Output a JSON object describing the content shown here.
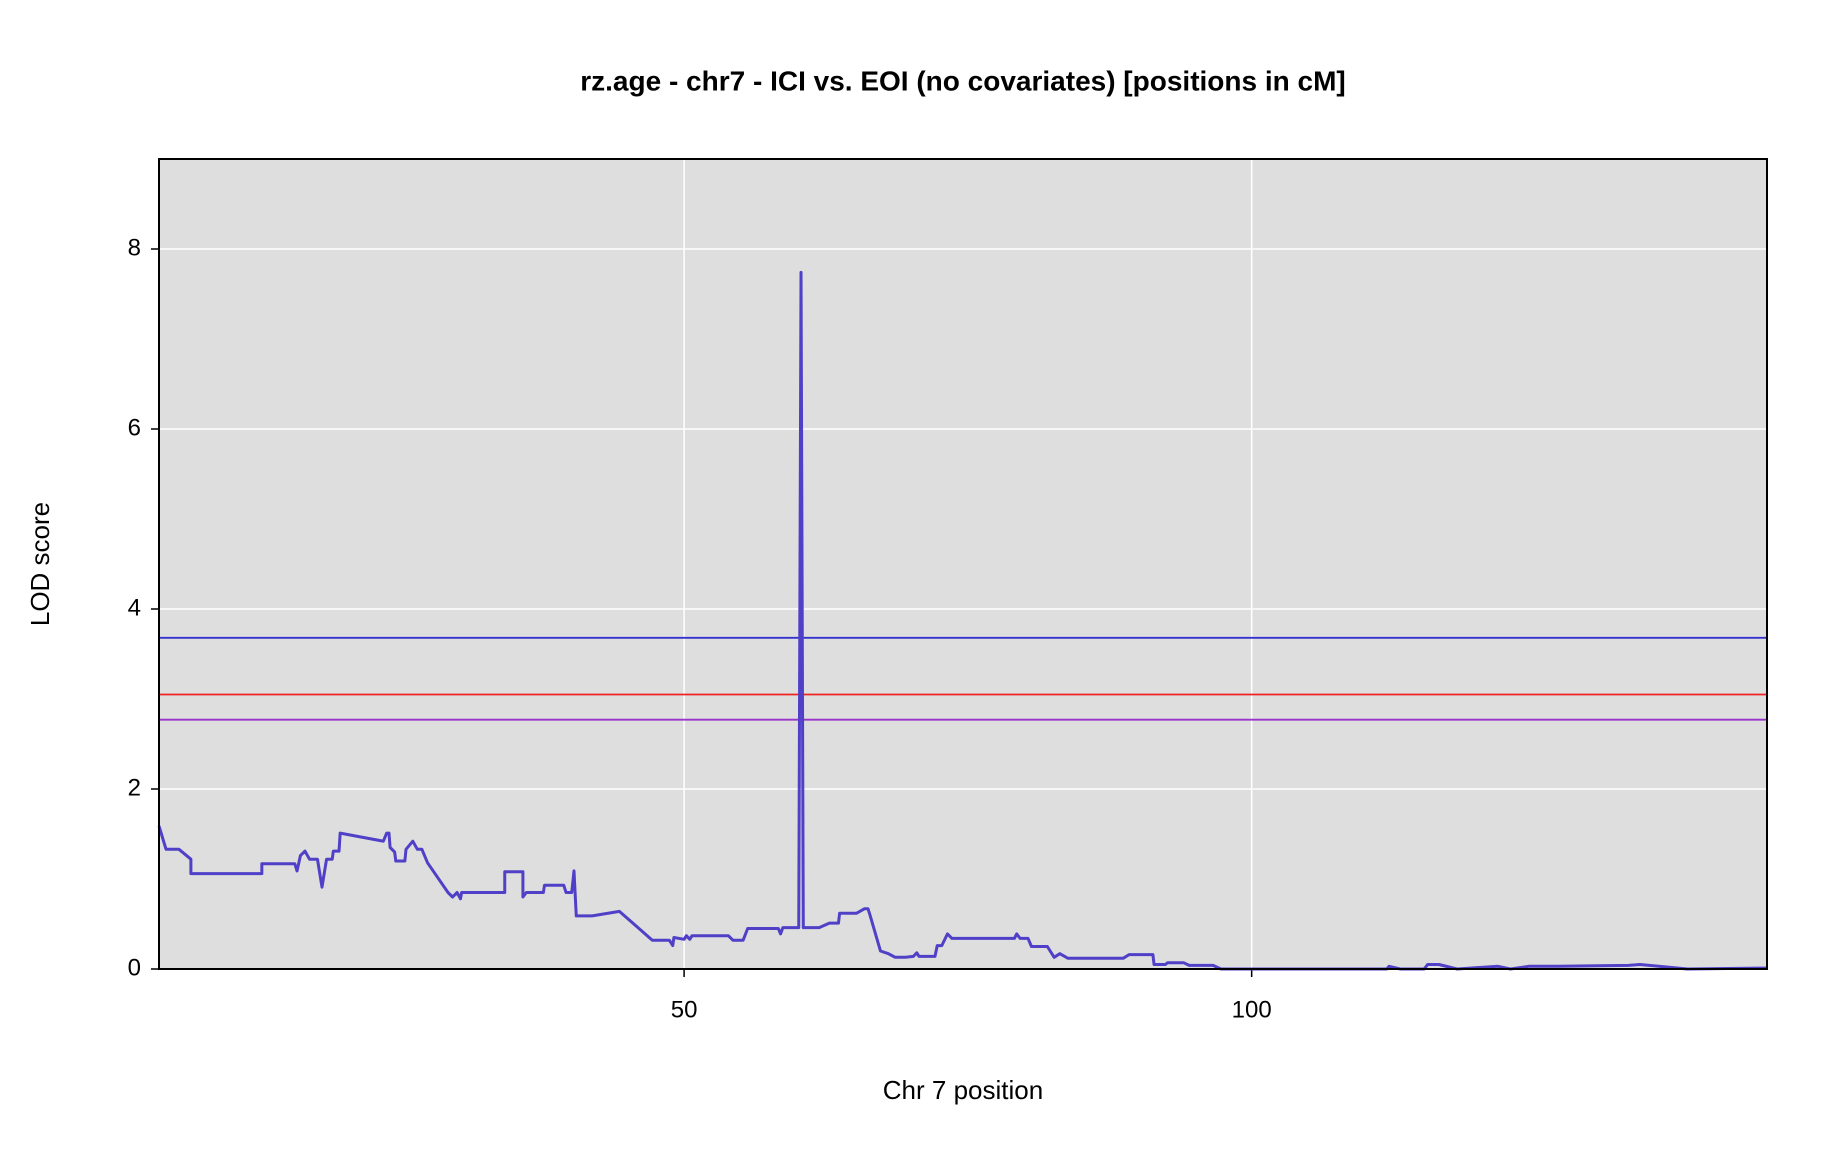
{
  "chart_data": {
    "type": "line",
    "title": "rz.age - chr7 - ICI vs. EOI (no covariates) [positions in cM]",
    "x_label": "Chr 7 position",
    "y_label": "LOD score",
    "x": [
      3.74,
      4.36,
      5.5,
      6.55,
      6.55,
      9.67,
      12.8,
      12.8,
      15.7,
      15.9,
      16.2,
      16.6,
      17.0,
      17.7,
      18.1,
      18.5,
      19.0,
      19.1,
      19.6,
      19.7,
      23.5,
      23.8,
      24.0,
      24.1,
      24.5,
      24.6,
      25.4,
      25.5,
      26.1,
      26.5,
      26.9,
      27.4,
      29.2,
      29.6,
      30.0,
      30.3,
      30.4,
      34.2,
      34.2,
      35.8,
      35.8,
      36.1,
      37.6,
      37.7,
      39.4,
      39.6,
      40.1,
      40.3,
      40.5,
      41.9,
      44.3,
      47.2,
      48.7,
      49.0,
      49.1,
      50.0,
      50.2,
      50.5,
      50.7,
      53.9,
      54.3,
      55.2,
      55.6,
      58.3,
      58.5,
      58.7,
      60.1,
      60.3,
      60.5,
      61.9,
      62.8,
      63.6,
      63.7,
      65.2,
      65.9,
      66.2,
      66.4,
      67.3,
      68.0,
      68.6,
      69.5,
      70.2,
      70.5,
      70.7,
      72.1,
      72.3,
      72.7,
      73.2,
      73.6,
      79.1,
      79.3,
      79.6,
      80.3,
      80.6,
      82.0,
      82.6,
      83.1,
      83.8,
      88.7,
      89.2,
      91.3,
      91.4,
      92.4,
      92.6,
      94.0,
      94.5,
      96.6,
      97.3,
      104.1,
      111.9,
      112.1,
      113.1,
      115.2,
      115.5,
      116.5,
      118.1,
      121.7,
      122.8,
      124.4,
      125.9,
      127.0,
      133.2,
      134.2,
      138.4,
      144.6,
      145.4
    ],
    "series": [
      {
        "color": "#5040c8",
        "values": [
          1.59,
          1.33,
          1.33,
          1.22,
          1.06,
          1.06,
          1.06,
          1.17,
          1.17,
          1.09,
          1.26,
          1.31,
          1.22,
          1.22,
          0.91,
          1.22,
          1.22,
          1.31,
          1.31,
          1.51,
          1.42,
          1.51,
          1.51,
          1.35,
          1.3,
          1.2,
          1.2,
          1.33,
          1.42,
          1.33,
          1.33,
          1.18,
          0.85,
          0.8,
          0.85,
          0.78,
          0.85,
          0.85,
          1.08,
          1.08,
          0.8,
          0.85,
          0.85,
          0.93,
          0.93,
          0.85,
          0.85,
          1.09,
          0.59,
          0.59,
          0.64,
          0.32,
          0.32,
          0.26,
          0.35,
          0.33,
          0.37,
          0.33,
          0.37,
          0.37,
          0.32,
          0.32,
          0.45,
          0.45,
          0.39,
          0.46,
          0.46,
          7.74,
          0.46,
          0.46,
          0.51,
          0.51,
          0.62,
          0.62,
          0.67,
          0.67,
          0.59,
          0.2,
          0.17,
          0.13,
          0.13,
          0.14,
          0.18,
          0.14,
          0.14,
          0.26,
          0.26,
          0.39,
          0.34,
          0.34,
          0.39,
          0.34,
          0.34,
          0.25,
          0.25,
          0.13,
          0.17,
          0.12,
          0.12,
          0.16,
          0.16,
          0.05,
          0.05,
          0.07,
          0.07,
          0.04,
          0.04,
          0,
          0,
          0,
          0.03,
          0,
          0,
          0.05,
          0.05,
          0,
          0.03,
          0,
          0.03,
          0.03,
          0.03,
          0.04,
          0.05,
          0,
          0.01,
          0.01
        ]
      }
    ],
    "thresholds": [
      {
        "value": 3.68,
        "color": "#3333cc"
      },
      {
        "value": 3.05,
        "color": "#ee2222"
      },
      {
        "value": 2.77,
        "color": "#9933cc"
      }
    ],
    "xlim": [
      3.74,
      145.4
    ],
    "ylim": [
      0,
      9.0
    ],
    "xticks": [
      50,
      100
    ],
    "yticks": [
      0,
      2,
      4,
      6,
      8
    ],
    "grid": true
  }
}
